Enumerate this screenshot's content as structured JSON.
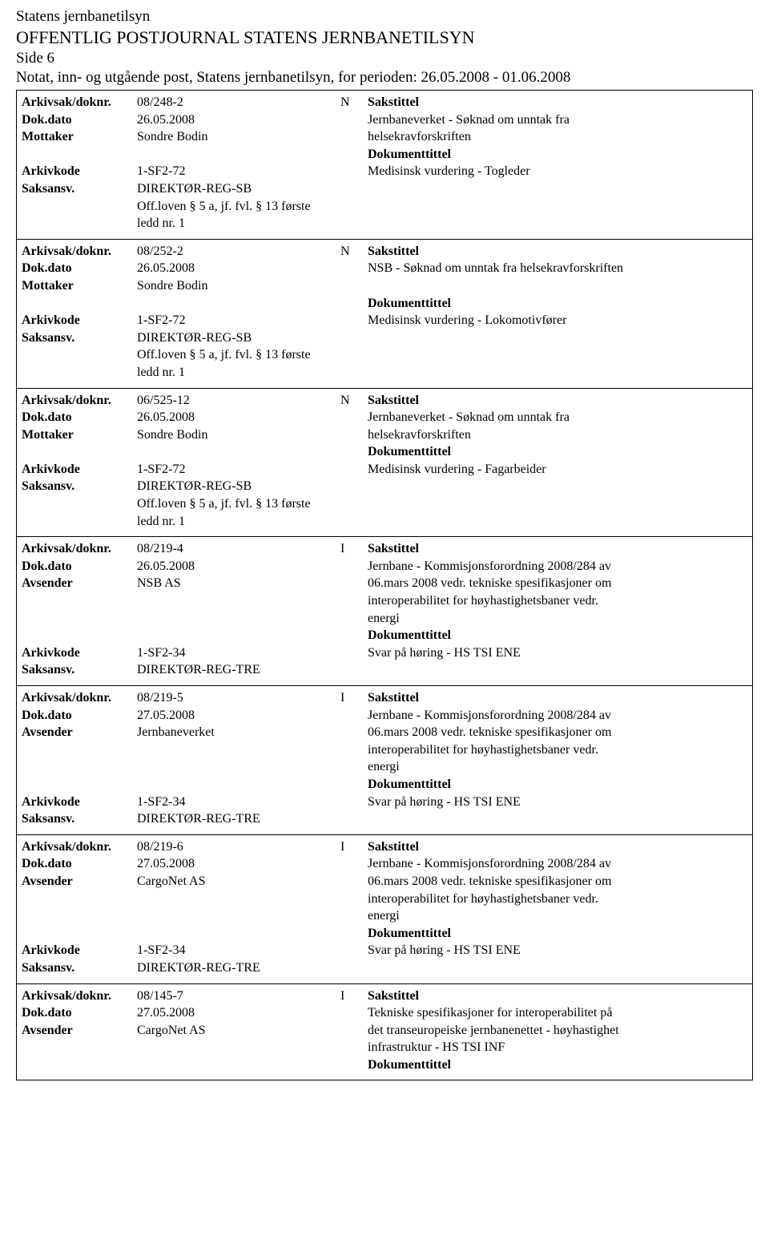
{
  "header": {
    "org": "Statens jernbanetilsyn",
    "title": "OFFENTLIG POSTJOURNAL STATENS JERNBANETILSYN",
    "page": "Side 6",
    "subtitle": "Notat, inn- og utgående post, Statens jernbanetilsyn, for perioden: 26.05.2008 - 01.06.2008"
  },
  "labels": {
    "arkivsak": "Arkivsak/doknr.",
    "dokdato": "Dok.dato",
    "mottaker": "Mottaker",
    "avsender": "Avsender",
    "arkivkode": "Arkivkode",
    "saksansv": "Saksansv.",
    "sakstittel": "Sakstittel",
    "dokumenttittel": "Dokumenttittel"
  },
  "entries": [
    {
      "doknr": "08/248-2",
      "flag": "N",
      "date": "26.05.2008",
      "partyLabel": "Mottaker",
      "party": "Sondre Bodin",
      "saksLines": [
        "Jernbaneverket - Søknad om unntak fra",
        "helsekravforskriften"
      ],
      "arkivkode": "1-SF2-72",
      "doktittel": "Medisinsk vurdering - Togleder",
      "saksansv": "DIREKTØR-REG-SB",
      "extra": [
        "Off.loven § 5 a, jf. fvl. § 13 første",
        "ledd nr. 1"
      ]
    },
    {
      "doknr": "08/252-2",
      "flag": "N",
      "date": "26.05.2008",
      "partyLabel": "Mottaker",
      "party": "Sondre Bodin",
      "saksLines": [
        "NSB - Søknad om unntak fra helsekravforskriften",
        ""
      ],
      "arkivkode": "1-SF2-72",
      "doktittel": "Medisinsk vurdering - Lokomotivfører",
      "saksansv": "DIREKTØR-REG-SB",
      "extra": [
        "Off.loven § 5 a, jf. fvl. § 13 første",
        "ledd nr. 1"
      ]
    },
    {
      "doknr": "06/525-12",
      "flag": "N",
      "date": "26.05.2008",
      "partyLabel": "Mottaker",
      "party": "Sondre Bodin",
      "saksLines": [
        "Jernbaneverket - Søknad om unntak fra",
        "helsekravforskriften"
      ],
      "arkivkode": "1-SF2-72",
      "doktittel": "Medisinsk vurdering - Fagarbeider",
      "saksansv": "DIREKTØR-REG-SB",
      "extra": [
        "Off.loven § 5 a, jf. fvl. § 13 første",
        "ledd nr. 1"
      ]
    },
    {
      "doknr": "08/219-4",
      "flag": "I",
      "date": "26.05.2008",
      "partyLabel": "Avsender",
      "party": "NSB AS",
      "saksLines": [
        "Jernbane - Kommisjonsforordning 2008/284 av",
        "06.mars 2008 vedr. tekniske spesifikasjoner om",
        "interoperabilitet for høyhastighetsbaner vedr.",
        "energi"
      ],
      "arkivkode": "1-SF2-34",
      "doktittel": "Svar på høring - HS TSI ENE",
      "saksansv": "DIREKTØR-REG-TRE",
      "extra": []
    },
    {
      "doknr": "08/219-5",
      "flag": "I",
      "date": "27.05.2008",
      "partyLabel": "Avsender",
      "party": "Jernbaneverket",
      "saksLines": [
        "Jernbane - Kommisjonsforordning 2008/284 av",
        "06.mars 2008 vedr. tekniske spesifikasjoner om",
        "interoperabilitet for høyhastighetsbaner vedr.",
        "energi"
      ],
      "arkivkode": "1-SF2-34",
      "doktittel": "Svar på høring - HS TSI ENE",
      "saksansv": "DIREKTØR-REG-TRE",
      "extra": []
    },
    {
      "doknr": "08/219-6",
      "flag": "I",
      "date": "27.05.2008",
      "partyLabel": "Avsender",
      "party": "CargoNet AS",
      "saksLines": [
        "Jernbane - Kommisjonsforordning 2008/284 av",
        "06.mars 2008 vedr. tekniske spesifikasjoner om",
        "interoperabilitet for høyhastighetsbaner vedr.",
        "energi"
      ],
      "arkivkode": "1-SF2-34",
      "doktittel": "Svar på høring - HS TSI ENE",
      "saksansv": "DIREKTØR-REG-TRE",
      "extra": []
    },
    {
      "doknr": "08/145-7",
      "flag": "I",
      "date": "27.05.2008",
      "partyLabel": "Avsender",
      "party": "CargoNet AS",
      "saksLines": [
        "Tekniske spesifikasjoner for interoperabilitet på",
        "det transeuropeiske jernbanenettet - høyhastighet",
        "infrastruktur - HS TSI INF"
      ],
      "arkivkode": "",
      "doktittel": "",
      "saksansv": "",
      "extra": [],
      "truncated": true
    }
  ]
}
